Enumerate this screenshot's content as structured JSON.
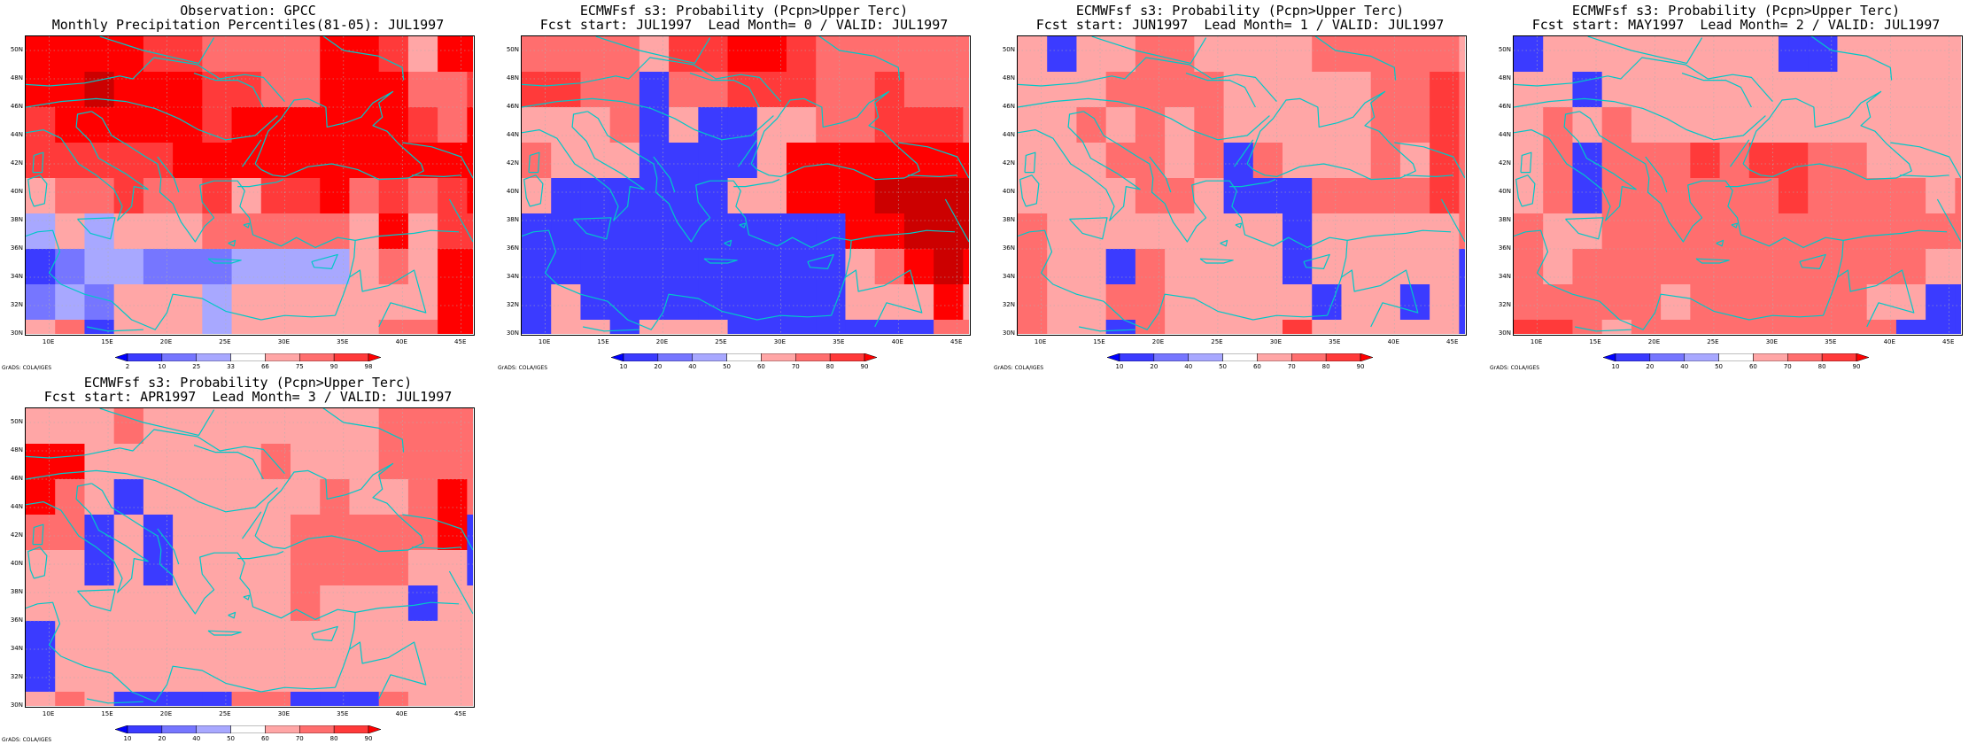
{
  "legend_colors": [
    "#0000ff",
    "#3b3bff",
    "#7676ff",
    "#a8a8ff",
    "#ffffff",
    "#ffa6a6",
    "#ff6e6e",
    "#ff3a3a",
    "#ff0000",
    "#cc0000"
  ],
  "coastline_color": "#00c8c8",
  "panels": [
    {
      "title_line1": "Observation: GPCC",
      "title_line2": "Monthly Precipitation Percentiles(81-05): JUL1997",
      "colorbar_labels": [
        "2",
        "10",
        "25",
        "33",
        "66",
        "75",
        "90",
        "98"
      ],
      "chart_data": {
        "type": "heatmap",
        "x_tick_labels": [
          "10E",
          "15E",
          "20E",
          "25E",
          "30E",
          "35E",
          "40E",
          "45E"
        ],
        "y_tick_labels": [
          "30N",
          "32N",
          "34N",
          "36N",
          "38N",
          "40N",
          "42N",
          "44N",
          "46N",
          "48N",
          "50N"
        ],
        "lon_range": [
          8,
          46
        ],
        "lat_range": [
          30,
          51
        ],
        "cell_deg": 2.5,
        "grid": [
          [
            8,
            8,
            8,
            8,
            7,
            7,
            6,
            6,
            6,
            6,
            8,
            8,
            7,
            5,
            8,
            8
          ],
          [
            8,
            8,
            9,
            8,
            8,
            8,
            7,
            7,
            6,
            6,
            8,
            8,
            8,
            6,
            6,
            7
          ],
          [
            7,
            8,
            8,
            8,
            8,
            8,
            7,
            8,
            8,
            8,
            8,
            8,
            8,
            7,
            6,
            8
          ],
          [
            7,
            7,
            7,
            7,
            7,
            8,
            8,
            8,
            8,
            8,
            8,
            8,
            8,
            8,
            8,
            8
          ],
          [
            5,
            6,
            6,
            7,
            6,
            6,
            7,
            5,
            7,
            7,
            8,
            6,
            7,
            6,
            7,
            8
          ],
          [
            3,
            5,
            3,
            5,
            5,
            5,
            6,
            6,
            6,
            6,
            6,
            5,
            8,
            5,
            7,
            7
          ],
          [
            1,
            2,
            3,
            3,
            2,
            2,
            2,
            3,
            3,
            3,
            3,
            5,
            6,
            5,
            8,
            8
          ],
          [
            2,
            3,
            2,
            5,
            5,
            5,
            3,
            5,
            5,
            5,
            5,
            5,
            5,
            5,
            8,
            8
          ],
          [
            5,
            6,
            1,
            5,
            5,
            5,
            3,
            5,
            5,
            5,
            5,
            5,
            6,
            6,
            8,
            8
          ],
          [
            5,
            6,
            5,
            5,
            1,
            1,
            5,
            6,
            6,
            5,
            3,
            1,
            5,
            6,
            6,
            7
          ],
          [
            5,
            5,
            5,
            6,
            5,
            5,
            5,
            1,
            1,
            1,
            1,
            1,
            1,
            5,
            6,
            6
          ]
        ]
      }
    },
    {
      "title_line1": "ECMWFsf s3: Probability (Pcpn>Upper Terc)",
      "title_line2": "Fcst start: JUL1997  Lead Month= 0 / VALID: JUL1997",
      "colorbar_labels": [
        "10",
        "20",
        "40",
        "50",
        "60",
        "70",
        "80",
        "90"
      ],
      "chart_data": {
        "type": "heatmap",
        "x_tick_labels": [
          "10E",
          "15E",
          "20E",
          "25E",
          "30E",
          "35E",
          "40E",
          "45E"
        ],
        "y_tick_labels": [
          "30N",
          "32N",
          "34N",
          "36N",
          "38N",
          "40N",
          "42N",
          "44N",
          "46N",
          "48N",
          "50N"
        ],
        "lon_range": [
          8,
          46
        ],
        "lat_range": [
          30,
          51
        ],
        "cell_deg": 2.5,
        "grid": [
          [
            6,
            6,
            6,
            6,
            5,
            7,
            7,
            8,
            8,
            7,
            6,
            6,
            6,
            6,
            6,
            6
          ],
          [
            7,
            7,
            6,
            6,
            1,
            6,
            6,
            7,
            7,
            7,
            6,
            6,
            7,
            6,
            6,
            6
          ],
          [
            5,
            5,
            5,
            6,
            1,
            5,
            1,
            1,
            5,
            5,
            6,
            6,
            7,
            7,
            7,
            6
          ],
          [
            6,
            5,
            5,
            5,
            1,
            1,
            1,
            1,
            5,
            8,
            8,
            8,
            8,
            8,
            8,
            8
          ],
          [
            5,
            1,
            1,
            1,
            1,
            1,
            1,
            5,
            5,
            8,
            8,
            8,
            9,
            9,
            9,
            9
          ],
          [
            1,
            1,
            1,
            1,
            1,
            1,
            1,
            1,
            1,
            1,
            1,
            8,
            8,
            9,
            9,
            9
          ],
          [
            1,
            1,
            1,
            1,
            1,
            1,
            1,
            1,
            1,
            1,
            1,
            5,
            6,
            8,
            9,
            8
          ],
          [
            1,
            5,
            1,
            1,
            1,
            1,
            1,
            1,
            1,
            1,
            1,
            5,
            5,
            5,
            8,
            5
          ],
          [
            1,
            5,
            5,
            1,
            5,
            5,
            5,
            1,
            1,
            1,
            1,
            1,
            1,
            1,
            6,
            6
          ],
          [
            1,
            1,
            1,
            1,
            1,
            1,
            1,
            1,
            1,
            1,
            1,
            1,
            1,
            1,
            5,
            6
          ],
          [
            1,
            1,
            1,
            1,
            1,
            1,
            1,
            1,
            1,
            1,
            1,
            1,
            1,
            1,
            5,
            5
          ]
        ]
      }
    },
    {
      "title_line1": "ECMWFsf s3: Probability (Pcpn>Upper Terc)",
      "title_line2": "Fcst start: JUN1997  Lead Month= 1 / VALID: JUL1997",
      "colorbar_labels": [
        "10",
        "20",
        "40",
        "50",
        "60",
        "70",
        "80",
        "90"
      ],
      "chart_data": {
        "type": "heatmap",
        "x_tick_labels": [
          "10E",
          "15E",
          "20E",
          "25E",
          "30E",
          "35E",
          "40E",
          "45E"
        ],
        "y_tick_labels": [
          "30N",
          "32N",
          "34N",
          "36N",
          "38N",
          "40N",
          "42N",
          "44N",
          "46N",
          "48N",
          "50N"
        ],
        "lon_range": [
          8,
          46
        ],
        "lat_range": [
          30,
          51
        ],
        "cell_deg": 2.5,
        "grid": [
          [
            5,
            1,
            5,
            5,
            6,
            6,
            5,
            5,
            5,
            5,
            6,
            6,
            6,
            6,
            6,
            5
          ],
          [
            5,
            5,
            5,
            6,
            6,
            6,
            6,
            5,
            5,
            5,
            5,
            5,
            6,
            6,
            7,
            6
          ],
          [
            5,
            5,
            6,
            5,
            6,
            5,
            6,
            5,
            5,
            5,
            5,
            5,
            6,
            6,
            7,
            6
          ],
          [
            5,
            5,
            5,
            6,
            6,
            5,
            6,
            1,
            6,
            5,
            5,
            5,
            6,
            5,
            7,
            6
          ],
          [
            5,
            5,
            5,
            5,
            6,
            6,
            5,
            1,
            1,
            1,
            6,
            6,
            6,
            6,
            7,
            6
          ],
          [
            6,
            5,
            5,
            5,
            5,
            5,
            5,
            5,
            5,
            1,
            5,
            5,
            5,
            5,
            5,
            6
          ],
          [
            6,
            5,
            5,
            1,
            6,
            5,
            5,
            5,
            5,
            1,
            5,
            5,
            5,
            5,
            5,
            1
          ],
          [
            6,
            5,
            5,
            6,
            6,
            5,
            5,
            5,
            5,
            5,
            1,
            5,
            5,
            1,
            5,
            1
          ],
          [
            6,
            5,
            5,
            1,
            6,
            5,
            5,
            5,
            5,
            7,
            5,
            5,
            5,
            5,
            5,
            1
          ],
          [
            5,
            5,
            5,
            6,
            5,
            1,
            5,
            5,
            5,
            5,
            5,
            1,
            5,
            5,
            6,
            5
          ],
          [
            5,
            5,
            6,
            7,
            6,
            5,
            6,
            5,
            5,
            5,
            5,
            5,
            5,
            5,
            5,
            5
          ]
        ]
      }
    },
    {
      "title_line1": "ECMWFsf s3: Probability (Pcpn>Upper Terc)",
      "title_line2": "Fcst start: MAY1997  Lead Month= 2 / VALID: JUL1997",
      "colorbar_labels": [
        "10",
        "20",
        "40",
        "50",
        "60",
        "70",
        "80",
        "90"
      ],
      "chart_data": {
        "type": "heatmap",
        "x_tick_labels": [
          "10E",
          "15E",
          "20E",
          "25E",
          "30E",
          "35E",
          "40E",
          "45E"
        ],
        "y_tick_labels": [
          "30N",
          "32N",
          "34N",
          "36N",
          "38N",
          "40N",
          "42N",
          "44N",
          "46N",
          "48N",
          "50N"
        ],
        "lon_range": [
          8,
          46
        ],
        "lat_range": [
          30,
          51
        ],
        "cell_deg": 2.5,
        "grid": [
          [
            1,
            5,
            5,
            5,
            5,
            5,
            5,
            5,
            5,
            1,
            1,
            5,
            5,
            5,
            5,
            5
          ],
          [
            5,
            5,
            1,
            5,
            5,
            5,
            5,
            5,
            5,
            5,
            5,
            5,
            5,
            5,
            5,
            5
          ],
          [
            5,
            6,
            5,
            6,
            5,
            5,
            5,
            5,
            5,
            5,
            5,
            5,
            5,
            5,
            5,
            5
          ],
          [
            5,
            6,
            1,
            6,
            6,
            6,
            7,
            6,
            7,
            7,
            6,
            6,
            5,
            5,
            5,
            5
          ],
          [
            5,
            6,
            1,
            6,
            6,
            6,
            6,
            6,
            6,
            7,
            6,
            6,
            6,
            6,
            5,
            6
          ],
          [
            6,
            5,
            5,
            6,
            6,
            6,
            6,
            6,
            6,
            6,
            6,
            6,
            6,
            6,
            6,
            6
          ],
          [
            6,
            5,
            6,
            6,
            6,
            6,
            6,
            6,
            6,
            6,
            6,
            6,
            6,
            6,
            5,
            5
          ],
          [
            6,
            6,
            6,
            6,
            6,
            5,
            6,
            6,
            6,
            6,
            6,
            6,
            5,
            5,
            1,
            1
          ],
          [
            7,
            7,
            6,
            5,
            6,
            6,
            6,
            6,
            6,
            6,
            6,
            6,
            6,
            1,
            1,
            1
          ],
          [
            7,
            7,
            7,
            6,
            6,
            6,
            6,
            6,
            6,
            6,
            6,
            1,
            1,
            1,
            1,
            1
          ],
          [
            7,
            7,
            7,
            7,
            6,
            6,
            6,
            6,
            6,
            6,
            6,
            1,
            1,
            1,
            1,
            5
          ]
        ]
      }
    },
    {
      "title_line1": "ECMWFsf s3: Probability (Pcpn>Upper Terc)",
      "title_line2": "Fcst start: APR1997  Lead Month= 3 / VALID: JUL1997",
      "colorbar_labels": [
        "10",
        "20",
        "40",
        "50",
        "60",
        "70",
        "80",
        "90"
      ],
      "chart_data": {
        "type": "heatmap",
        "x_tick_labels": [
          "10E",
          "15E",
          "20E",
          "25E",
          "30E",
          "35E",
          "40E",
          "45E"
        ],
        "y_tick_labels": [
          "30N",
          "32N",
          "34N",
          "36N",
          "38N",
          "40N",
          "42N",
          "44N",
          "46N",
          "48N",
          "50N"
        ],
        "lon_range": [
          8,
          46
        ],
        "lat_range": [
          30,
          51
        ],
        "cell_deg": 2.5,
        "grid": [
          [
            5,
            5,
            5,
            6,
            5,
            5,
            5,
            5,
            5,
            5,
            5,
            5,
            6,
            6,
            6,
            6
          ],
          [
            8,
            8,
            5,
            5,
            5,
            5,
            5,
            5,
            6,
            5,
            5,
            5,
            6,
            6,
            6,
            6
          ],
          [
            8,
            6,
            5,
            1,
            5,
            5,
            5,
            5,
            5,
            5,
            6,
            5,
            5,
            6,
            8,
            6
          ],
          [
            6,
            6,
            1,
            5,
            1,
            5,
            5,
            5,
            5,
            6,
            6,
            6,
            6,
            6,
            8,
            1
          ],
          [
            5,
            5,
            1,
            5,
            1,
            5,
            5,
            5,
            5,
            6,
            6,
            6,
            6,
            5,
            5,
            1
          ],
          [
            5,
            5,
            5,
            5,
            5,
            5,
            5,
            5,
            5,
            6,
            5,
            5,
            5,
            1,
            5,
            5
          ],
          [
            1,
            5,
            5,
            5,
            5,
            5,
            5,
            5,
            5,
            5,
            5,
            5,
            5,
            5,
            5,
            5
          ],
          [
            1,
            5,
            5,
            5,
            5,
            5,
            5,
            5,
            5,
            5,
            5,
            5,
            5,
            5,
            5,
            5
          ],
          [
            5,
            6,
            5,
            1,
            1,
            1,
            1,
            6,
            6,
            1,
            1,
            1,
            6,
            5,
            5,
            5
          ],
          [
            5,
            5,
            5,
            5,
            5,
            5,
            6,
            7,
            5,
            5,
            1,
            5,
            1,
            5,
            5,
            1
          ],
          [
            6,
            6,
            5,
            5,
            5,
            7,
            7,
            7,
            7,
            7,
            5,
            5,
            1,
            5,
            5,
            1
          ]
        ]
      }
    }
  ],
  "credit": "GrADS: COLA/IGES"
}
